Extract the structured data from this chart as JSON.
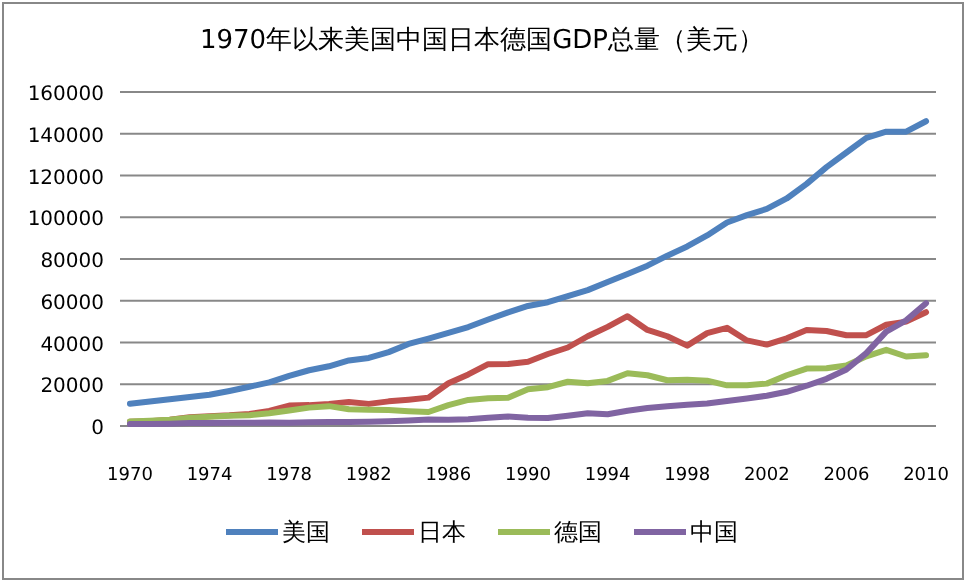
{
  "chart_data": {
    "type": "line",
    "title": "1970年以来美国中国日本德国GDP总量（美元）",
    "x": [
      1970,
      1971,
      1972,
      1973,
      1974,
      1975,
      1976,
      1977,
      1978,
      1979,
      1980,
      1981,
      1982,
      1983,
      1984,
      1985,
      1986,
      1987,
      1988,
      1989,
      1990,
      1991,
      1992,
      1993,
      1994,
      1995,
      1996,
      1997,
      1998,
      1999,
      2000,
      2001,
      2002,
      2003,
      2004,
      2005,
      2006,
      2007,
      2008,
      2009,
      2010
    ],
    "xlim": [
      1969.5,
      2010.5
    ],
    "xticks": [
      1970,
      1974,
      1978,
      1982,
      1986,
      1990,
      1994,
      1998,
      2002,
      2006,
      2010
    ],
    "ylim": [
      0,
      160000
    ],
    "yticks": [
      0,
      20000,
      40000,
      60000,
      80000,
      100000,
      120000,
      140000,
      160000
    ],
    "grid": "y",
    "legend": "bottom",
    "series": [
      {
        "name": "美国",
        "color": "#4f81bd",
        "values": [
          10700,
          11700,
          12800,
          13900,
          15000,
          16800,
          18800,
          20900,
          24000,
          26700,
          28600,
          31400,
          32600,
          35400,
          39300,
          41900,
          44600,
          47400,
          51000,
          54400,
          57500,
          59300,
          62200,
          65100,
          69000,
          72800,
          76800,
          81600,
          86000,
          91300,
          97500,
          101000,
          104000,
          109000,
          116000,
          124000,
          131000,
          138000,
          141000,
          141000,
          146000
        ]
      },
      {
        "name": "日本",
        "color": "#c0504d",
        "values": [
          2000,
          2300,
          3000,
          4200,
          4700,
          5100,
          5800,
          7200,
          9800,
          10000,
          10600,
          11500,
          10600,
          11800,
          12600,
          13600,
          20500,
          24700,
          29600,
          29700,
          30800,
          34500,
          37600,
          43000,
          47500,
          52600,
          46000,
          43000,
          38500,
          44500,
          47000,
          41000,
          39000,
          42000,
          46000,
          45500,
          43500,
          43500,
          48500,
          50000,
          54500
        ]
      },
      {
        "name": "德国",
        "color": "#9bbb59",
        "values": [
          2100,
          2500,
          3000,
          3900,
          4400,
          4900,
          5200,
          6100,
          7400,
          8800,
          9500,
          8000,
          7800,
          7700,
          7100,
          6700,
          10000,
          12500,
          13300,
          13500,
          17600,
          18600,
          21200,
          20500,
          21600,
          25300,
          24300,
          21900,
          22200,
          21700,
          19500,
          19500,
          20300,
          24300,
          27500,
          27700,
          29000,
          33400,
          36500,
          33300,
          33900
        ]
      },
      {
        "name": "中国",
        "color": "#8064a2",
        "values": [
          900,
          1000,
          1100,
          1400,
          1400,
          1600,
          1500,
          1700,
          1500,
          1800,
          1900,
          1900,
          2000,
          2300,
          2600,
          3100,
          3000,
          3200,
          4000,
          4500,
          3900,
          3800,
          4900,
          6100,
          5600,
          7300,
          8600,
          9500,
          10200,
          10800,
          12000,
          13200,
          14500,
          16400,
          19300,
          22600,
          27100,
          34900,
          45200,
          50600,
          58800
        ]
      }
    ]
  }
}
